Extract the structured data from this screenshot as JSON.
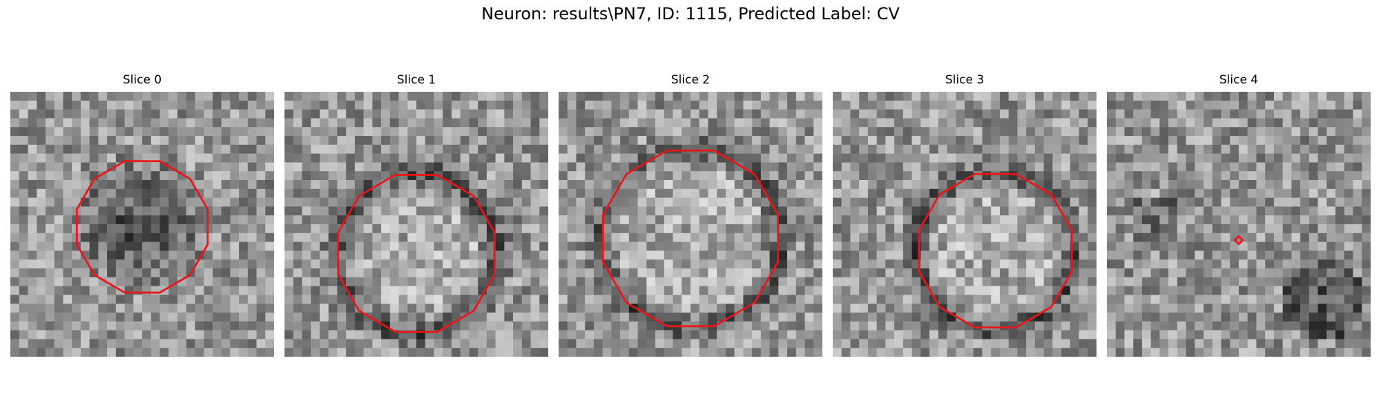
{
  "figure": {
    "title": "Neuron: results\\PN7, ID: 1115, Predicted Label: CV"
  },
  "panels": [
    {
      "title": "Slice 0",
      "seed": 11,
      "pattern": "dark-center",
      "contour": "large"
    },
    {
      "title": "Slice 1",
      "seed": 23,
      "pattern": "dark-ring",
      "contour": "large"
    },
    {
      "title": "Slice 2",
      "seed": 37,
      "pattern": "dark-ring",
      "contour": "large"
    },
    {
      "title": "Slice 3",
      "seed": 41,
      "pattern": "dark-ring",
      "contour": "large"
    },
    {
      "title": "Slice 4",
      "seed": 59,
      "pattern": "noise",
      "contour": "point"
    }
  ],
  "colors": {
    "contour": "#e8161b",
    "background": "#ffffff"
  }
}
